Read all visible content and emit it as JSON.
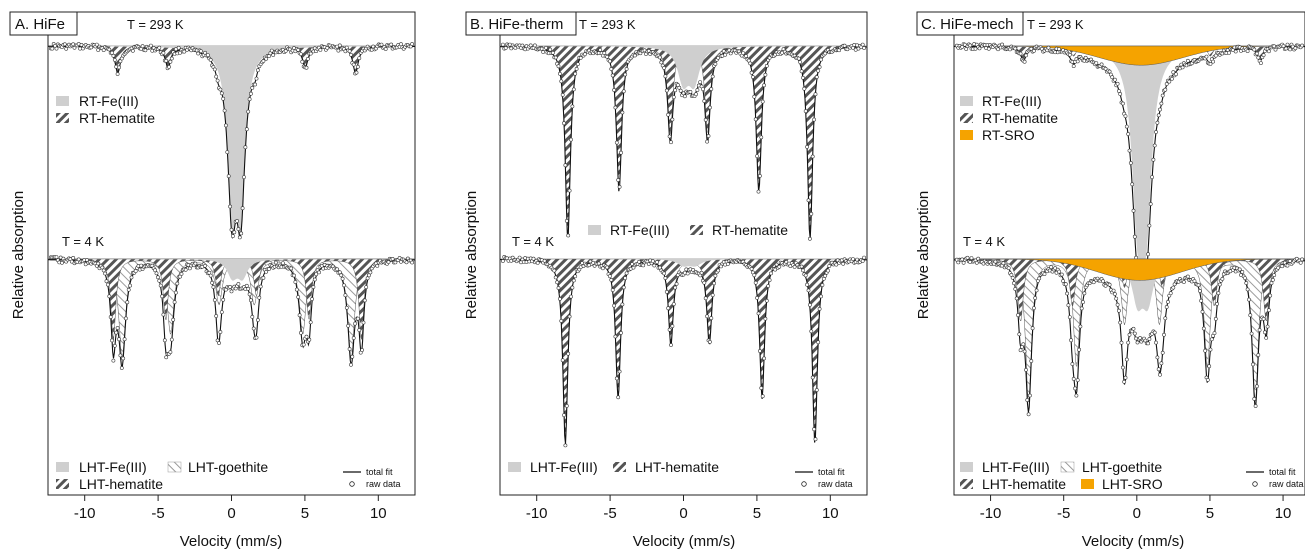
{
  "colors": {
    "fe3": "#cfcfcf",
    "sro": "#f5a300",
    "hatch": "#555555",
    "line": "#111111"
  },
  "chart_data": [
    {
      "type": "line",
      "panel_label": "A. HiFe",
      "xlabel": "Velocity (mm/s)",
      "ylabel": "Relative absorption",
      "xlim": [
        -12.5,
        12.5
      ],
      "x_ticks": [
        -10,
        -5,
        0,
        5,
        10
      ],
      "upper": {
        "temp_label": "T = 293 K",
        "components": [
          {
            "name": "RT-Fe(III)",
            "kind": "fe3",
            "doublet": {
              "center": 0.33,
              "split": 0.6,
              "depth": 1.0,
              "width": 0.7
            }
          },
          {
            "name": "RT-hematite",
            "kind": "hematite",
            "sextet": {
              "center": 0.35,
              "bhf": 8.1,
              "depth": 0.14,
              "width": 0.45
            }
          }
        ],
        "legend": [
          "RT-Fe(III)",
          "RT-hematite"
        ]
      },
      "lower": {
        "temp_label": "T = 4 K",
        "components": [
          {
            "name": "LHT-Fe(III)",
            "kind": "fe3",
            "doublet": {
              "center": 0.4,
              "split": 0.7,
              "depth": 0.12,
              "width": 0.8
            }
          },
          {
            "name": "LHT-goethite",
            "kind": "goethite",
            "sextet": {
              "center": 0.35,
              "bhf": 7.8,
              "depth": 0.55,
              "width": 0.55
            }
          },
          {
            "name": "LHT-hematite",
            "kind": "hematite",
            "sextet": {
              "center": 0.4,
              "bhf": 8.45,
              "depth": 0.45,
              "width": 0.4
            }
          }
        ],
        "legend": [
          "LHT-Fe(III)",
          "LHT-goethite",
          "LHT-hematite"
        ]
      },
      "fit_legend": [
        "total fit",
        "raw data"
      ]
    },
    {
      "type": "line",
      "panel_label": "B. HiFe-therm",
      "xlabel": "Velocity (mm/s)",
      "ylabel": "Relative absorption",
      "xlim": [
        -12.5,
        12.5
      ],
      "x_ticks": [
        -10,
        -5,
        0,
        5,
        10
      ],
      "upper": {
        "temp_label": "T = 293 K",
        "components": [
          {
            "name": "RT-Fe(III)",
            "kind": "fe3",
            "doublet": {
              "center": 0.35,
              "split": 0.75,
              "depth": 0.22,
              "width": 0.9
            }
          },
          {
            "name": "RT-hematite",
            "kind": "hematite",
            "sextet": {
              "center": 0.37,
              "bhf": 8.25,
              "depth": 1.0,
              "width": 0.42
            }
          }
        ],
        "legend": [
          "RT-Fe(III)",
          "RT-hematite"
        ]
      },
      "lower": {
        "temp_label": "T = 4 K",
        "components": [
          {
            "name": "LHT-Fe(III)",
            "kind": "fe3",
            "doublet": {
              "center": 0.4,
              "split": 0.8,
              "depth": 0.04,
              "width": 1.0
            }
          },
          {
            "name": "LHT-hematite",
            "kind": "hematite",
            "sextet": {
              "center": 0.45,
              "bhf": 8.5,
              "depth": 1.0,
              "width": 0.4
            }
          }
        ],
        "legend": [
          "LHT-Fe(III)",
          "LHT-hematite"
        ]
      },
      "fit_legend": [
        "total fit",
        "raw data"
      ]
    },
    {
      "type": "line",
      "panel_label": "C. HiFe-mech",
      "xlabel": "Velocity (mm/s)",
      "ylabel": "Relative absorption",
      "xlim": [
        -12.5,
        11.5
      ],
      "x_ticks": [
        -10,
        -5,
        0,
        5,
        10
      ],
      "upper": {
        "temp_label": "T = 293 K",
        "components": [
          {
            "name": "RT-Fe(III)",
            "kind": "fe3",
            "doublet": {
              "center": 0.35,
              "split": 0.6,
              "depth": 1.0,
              "width": 0.9
            }
          },
          {
            "name": "RT-hematite",
            "kind": "hematite",
            "sextet": {
              "center": 0.35,
              "bhf": 8.1,
              "depth": 0.07,
              "width": 0.45
            }
          },
          {
            "name": "RT-SRO",
            "kind": "sro",
            "broad": {
              "center": 0.3,
              "depth": 0.1,
              "width": 6.0
            }
          }
        ],
        "legend": [
          "RT-Fe(III)",
          "RT-hematite",
          "RT-SRO"
        ]
      },
      "lower": {
        "temp_label": "T = 4 K",
        "components": [
          {
            "name": "LHT-Fe(III)",
            "kind": "fe3",
            "doublet": {
              "center": 0.4,
              "split": 0.7,
              "depth": 0.28,
              "width": 0.9
            }
          },
          {
            "name": "LHT-goethite",
            "kind": "goethite",
            "sextet": {
              "center": 0.35,
              "bhf": 7.75,
              "depth": 0.8,
              "width": 0.5
            }
          },
          {
            "name": "LHT-hematite",
            "kind": "hematite",
            "sextet": {
              "center": 0.45,
              "bhf": 8.4,
              "depth": 0.35,
              "width": 0.45
            }
          },
          {
            "name": "LHT-SRO",
            "kind": "sro",
            "broad": {
              "center": 0.2,
              "depth": 0.12,
              "width": 6.0
            }
          }
        ],
        "legend": [
          "LHT-Fe(III)",
          "LHT-goethite",
          "LHT-hematite",
          "LHT-SRO"
        ]
      },
      "fit_legend": [
        "total fit",
        "raw data"
      ]
    }
  ]
}
